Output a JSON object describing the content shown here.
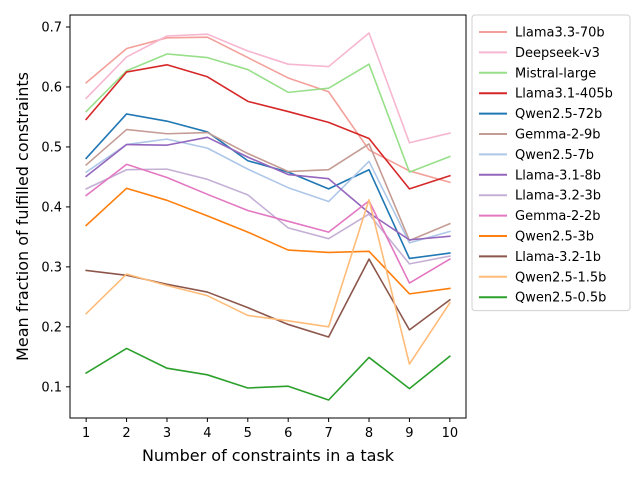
{
  "chart_data": {
    "type": "line",
    "title": "",
    "xlabel": "Number of constraints in a task",
    "ylabel": "Mean fraction of fulfilled constraints",
    "x": [
      1,
      2,
      3,
      4,
      5,
      6,
      7,
      8,
      9,
      10
    ],
    "xlim": [
      0.6,
      10.4
    ],
    "ylim": [
      0.048,
      0.72
    ],
    "yticks": [
      0.1,
      0.2,
      0.3,
      0.4,
      0.5,
      0.6,
      0.7
    ],
    "ytick_labels": [
      "0.1",
      "0.2",
      "0.3",
      "0.4",
      "0.5",
      "0.6",
      "0.7"
    ],
    "xtick_labels": [
      "1",
      "2",
      "3",
      "4",
      "5",
      "6",
      "7",
      "8",
      "9",
      "10"
    ],
    "legend_position": "outside-right",
    "grid": false,
    "series": [
      {
        "name": "Llama3.3-70b",
        "color": "#f4a09a",
        "values": [
          0.607,
          0.664,
          0.682,
          0.683,
          0.649,
          0.615,
          0.592,
          0.495,
          0.46,
          0.441
        ]
      },
      {
        "name": "Deepseek-v3",
        "color": "#f7b6cf",
        "values": [
          0.581,
          0.65,
          0.685,
          0.688,
          0.66,
          0.638,
          0.634,
          0.69,
          0.507,
          0.523
        ]
      },
      {
        "name": "Mistral-large",
        "color": "#98df8a",
        "values": [
          0.559,
          0.627,
          0.655,
          0.649,
          0.629,
          0.591,
          0.598,
          0.638,
          0.458,
          0.484
        ]
      },
      {
        "name": "Llama3.1-405b",
        "color": "#d62728",
        "values": [
          0.546,
          0.625,
          0.637,
          0.617,
          0.576,
          0.559,
          0.541,
          0.514,
          0.43,
          0.452
        ]
      },
      {
        "name": "Qwen2.5-72b",
        "color": "#1f77b4",
        "values": [
          0.481,
          0.555,
          0.543,
          0.525,
          0.477,
          0.458,
          0.43,
          0.462,
          0.314,
          0.323
        ]
      },
      {
        "name": "Gemma-2-9b",
        "color": "#c49c94",
        "values": [
          0.47,
          0.529,
          0.522,
          0.524,
          0.489,
          0.459,
          0.462,
          0.505,
          0.344,
          0.372
        ]
      },
      {
        "name": "Qwen2.5-7b",
        "color": "#aec7e8",
        "values": [
          0.458,
          0.504,
          0.513,
          0.498,
          0.463,
          0.432,
          0.409,
          0.476,
          0.34,
          0.359
        ]
      },
      {
        "name": "Llama-3.1-8b",
        "color": "#9467bd",
        "values": [
          0.451,
          0.504,
          0.503,
          0.516,
          0.483,
          0.454,
          0.447,
          0.39,
          0.345,
          0.351
        ]
      },
      {
        "name": "Llama-3.2-3b",
        "color": "#c5b0d5",
        "values": [
          0.43,
          0.462,
          0.463,
          0.446,
          0.42,
          0.365,
          0.347,
          0.388,
          0.305,
          0.318
        ]
      },
      {
        "name": "Gemma-2-2b",
        "color": "#e377c2",
        "values": [
          0.419,
          0.471,
          0.449,
          0.421,
          0.394,
          0.376,
          0.358,
          0.41,
          0.273,
          0.313
        ]
      },
      {
        "name": "Qwen2.5-3b",
        "color": "#ff7f0e",
        "values": [
          0.369,
          0.431,
          0.411,
          0.385,
          0.358,
          0.328,
          0.324,
          0.326,
          0.255,
          0.264
        ]
      },
      {
        "name": "Llama-3.2-1b",
        "color": "#8c564b",
        "values": [
          0.294,
          0.286,
          0.271,
          0.258,
          0.232,
          0.204,
          0.183,
          0.313,
          0.195,
          0.245
        ]
      },
      {
        "name": "Qwen2.5-1.5b",
        "color": "#ffbb78",
        "values": [
          0.222,
          0.288,
          0.269,
          0.252,
          0.219,
          0.21,
          0.2,
          0.412,
          0.138,
          0.24
        ]
      },
      {
        "name": "Qwen2.5-0.5b",
        "color": "#2ca02c",
        "values": [
          0.123,
          0.164,
          0.131,
          0.12,
          0.098,
          0.101,
          0.078,
          0.149,
          0.097,
          0.151
        ]
      }
    ]
  }
}
